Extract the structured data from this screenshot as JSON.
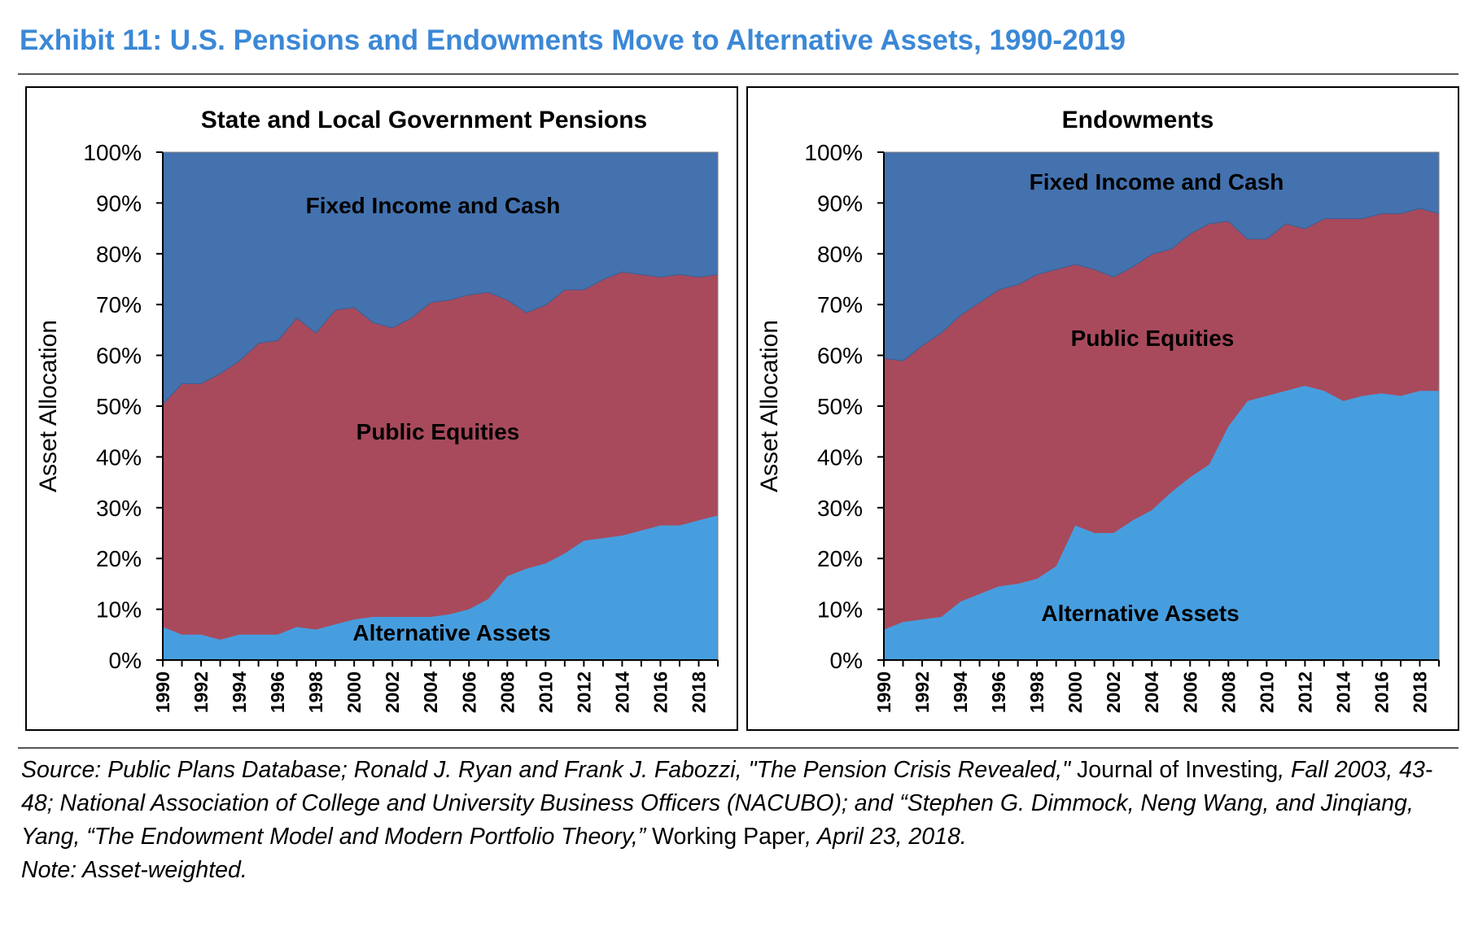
{
  "title": "Exhibit 11: U.S. Pensions and Endowments Move to Alternative Assets, 1990-2019",
  "colors": {
    "title": "#3b88d6",
    "fixed_income": "#4472ae",
    "public_equities": "#a84a5c",
    "alternative_assets": "#479edf"
  },
  "chart_data": [
    {
      "type": "area",
      "stacked": true,
      "title": "State and Local Government Pensions",
      "ylabel": "Asset Allocation",
      "xlabel": "",
      "ylim": [
        0,
        100
      ],
      "yticks": [
        "0%",
        "10%",
        "20%",
        "30%",
        "40%",
        "50%",
        "60%",
        "70%",
        "80%",
        "90%",
        "100%"
      ],
      "xtick_labels": [
        "1990",
        "1992",
        "1994",
        "1996",
        "1998",
        "2000",
        "2002",
        "2004",
        "2006",
        "2008",
        "2010",
        "2012",
        "2014",
        "2016",
        "2018"
      ],
      "x": [
        1990,
        1991,
        1992,
        1993,
        1994,
        1995,
        1996,
        1997,
        1998,
        1999,
        2000,
        2001,
        2002,
        2003,
        2004,
        2005,
        2006,
        2007,
        2008,
        2009,
        2010,
        2011,
        2012,
        2013,
        2014,
        2015,
        2016,
        2017,
        2018,
        2019
      ],
      "series": [
        {
          "name": "Alternative Assets",
          "values": [
            6.5,
            5,
            5,
            4,
            5,
            5,
            5,
            6.5,
            6,
            7,
            8,
            8.5,
            8.5,
            8.5,
            8.5,
            9,
            10,
            12,
            16.5,
            18,
            19,
            21,
            23.5,
            24,
            24.5,
            25.5,
            26.5,
            26.5,
            27.5,
            28.5
          ]
        },
        {
          "name": "Public Equities",
          "values": [
            44,
            49.5,
            49.5,
            52.5,
            54,
            57.5,
            58,
            61,
            58.5,
            62,
            61.5,
            58,
            57,
            59,
            62,
            62,
            62,
            60.5,
            54.5,
            50.5,
            51,
            52,
            49.5,
            51,
            52,
            50.5,
            49,
            49.5,
            48,
            47.5
          ]
        },
        {
          "name": "Fixed Income and Cash",
          "values": [
            49.5,
            45.5,
            45.5,
            43.5,
            41,
            37.5,
            37,
            32.5,
            35.5,
            31,
            30.5,
            33.5,
            34.5,
            32.5,
            29.5,
            29,
            28,
            27.5,
            29,
            31.5,
            30,
            27,
            27,
            25,
            23.5,
            24,
            24.5,
            24,
            24.5,
            24
          ]
        }
      ],
      "area_labels": {
        "fixed_income": "Fixed Income and Cash",
        "public_equities": "Public Equities",
        "alternative_assets": "Alternative Assets"
      }
    },
    {
      "type": "area",
      "stacked": true,
      "title": "Endowments",
      "ylabel": "Asset Allocation",
      "xlabel": "",
      "ylim": [
        0,
        100
      ],
      "yticks": [
        "0%",
        "10%",
        "20%",
        "30%",
        "40%",
        "50%",
        "60%",
        "70%",
        "80%",
        "90%",
        "100%"
      ],
      "xtick_labels": [
        "1990",
        "1992",
        "1994",
        "1996",
        "1998",
        "2000",
        "2002",
        "2004",
        "2006",
        "2008",
        "2010",
        "2012",
        "2014",
        "2016",
        "2018"
      ],
      "x": [
        1990,
        1991,
        1992,
        1993,
        1994,
        1995,
        1996,
        1997,
        1998,
        1999,
        2000,
        2001,
        2002,
        2003,
        2004,
        2005,
        2006,
        2007,
        2008,
        2009,
        2010,
        2011,
        2012,
        2013,
        2014,
        2015,
        2016,
        2017,
        2018,
        2019
      ],
      "series": [
        {
          "name": "Alternative Assets",
          "values": [
            6,
            7.5,
            8,
            8.5,
            11.5,
            13,
            14.5,
            15,
            16,
            18.5,
            26.5,
            25,
            25,
            27.5,
            29.5,
            33,
            36,
            38.5,
            46,
            51,
            52,
            53,
            54,
            53,
            51,
            52,
            52.5,
            52,
            53,
            53
          ]
        },
        {
          "name": "Public Equities",
          "values": [
            53.5,
            51.5,
            54,
            56,
            56.5,
            57.5,
            58.5,
            59,
            60,
            58.5,
            51.5,
            52,
            50.5,
            50,
            50.5,
            48,
            48,
            47.5,
            40.5,
            32,
            31,
            33,
            31,
            34,
            36,
            35,
            35.5,
            36,
            36,
            35
          ]
        },
        {
          "name": "Fixed Income and Cash",
          "values": [
            40.5,
            41,
            38,
            35.5,
            32,
            29.5,
            27,
            26,
            24,
            23,
            22,
            23,
            24.5,
            22.5,
            20,
            19,
            15.5,
            14,
            13.5,
            17,
            17,
            14,
            15,
            13,
            13,
            13,
            12,
            12,
            11,
            12
          ]
        }
      ],
      "area_labels": {
        "fixed_income": "Fixed Income and Cash",
        "public_equities": "Public Equities",
        "alternative_assets": "Alternative Assets"
      }
    }
  ],
  "source": {
    "part1": "Source: Public Plans Database; Ronald J. Ryan and Frank J. Fabozzi, \"The Pension Crisis Revealed,\" ",
    "part2": "Journal of Investing",
    "part3": ", Fall 2003, 43-48; National Association of College and University Business Officers (NACUBO); and “Stephen G. Dimmock, Neng Wang, and Jinqiang, Yang, “The Endowment Model and Modern Portfolio Theory,” ",
    "part4": "Working Paper",
    "part5": ", April 23, 2018.",
    "note": "Note: Asset-weighted."
  }
}
